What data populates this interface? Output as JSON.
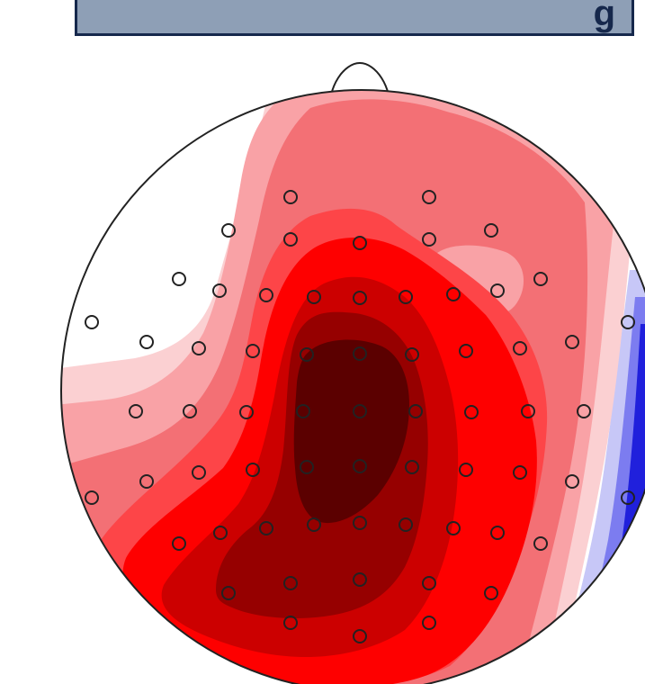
{
  "banner": {
    "text": "g",
    "bg_color": "#8e9fb6",
    "border_color": "#16284c"
  },
  "topomap": {
    "colors": {
      "outline": "#222222",
      "white": "#ffffff",
      "red_1": "#fbd0d2",
      "red_2": "#f9a2a6",
      "red_3": "#f37075",
      "red_4": "#fd4548",
      "red_5": "#fe0000",
      "red_6": "#cc0000",
      "red_7": "#960000",
      "red_8": "#5b0000",
      "blue_1": "#c7c7f7",
      "blue_2": "#7c7cf0",
      "blue_3": "#2020dc"
    },
    "electrode_count": 64
  }
}
